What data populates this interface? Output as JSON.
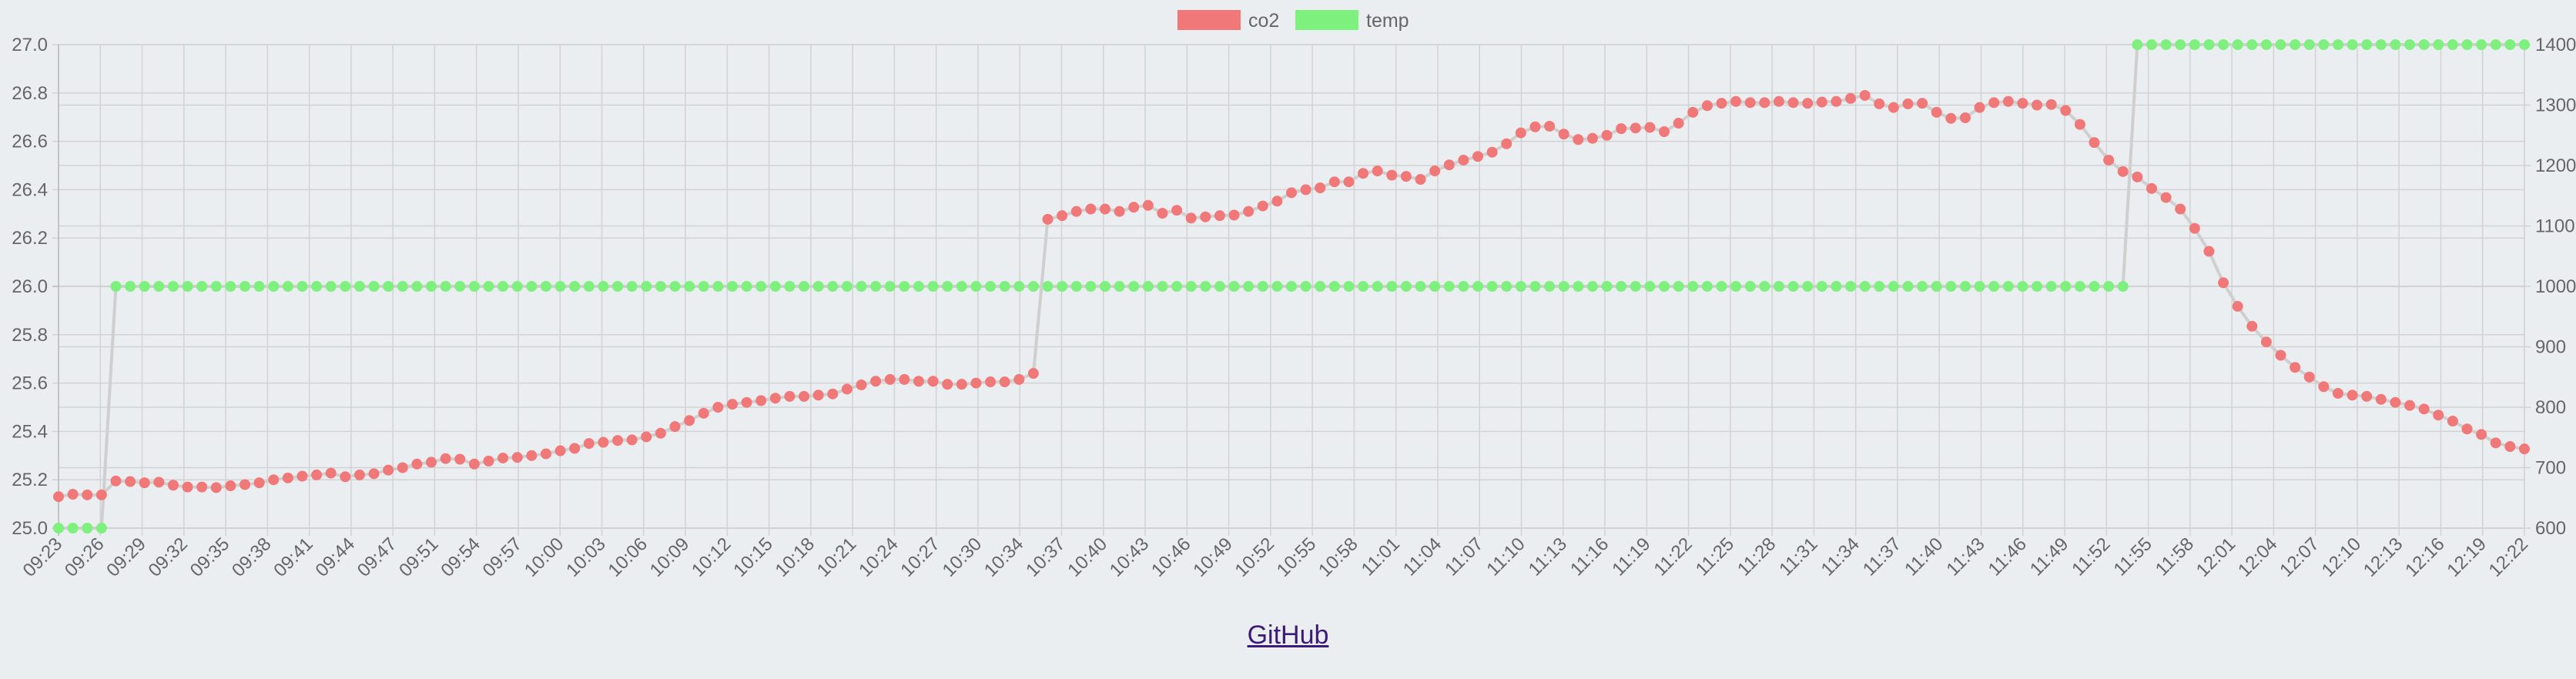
{
  "footer": {
    "link_label": "GitHub"
  },
  "chart_data": {
    "type": "line",
    "legend": {
      "position": "top",
      "entries": [
        "co2",
        "temp"
      ]
    },
    "grid": true,
    "colors": {
      "co2": "#f07878",
      "temp": "#7ef07e",
      "line": "#cfcfcf"
    },
    "y_left": {
      "min": 25.0,
      "max": 27.0,
      "ticks": [
        "25.0",
        "25.2",
        "25.4",
        "25.6",
        "25.8",
        "26.0",
        "26.2",
        "26.4",
        "26.6",
        "26.8",
        "27.0"
      ]
    },
    "y_right": {
      "min": 600,
      "max": 1400,
      "ticks": [
        "600",
        "700",
        "800",
        "900",
        "1000",
        "1100",
        "1200",
        "1300",
        "1400"
      ]
    },
    "x_labels": [
      "09:23",
      "09:26",
      "09:29",
      "09:32",
      "09:35",
      "09:38",
      "09:41",
      "09:44",
      "09:47",
      "09:51",
      "09:54",
      "09:57",
      "10:00",
      "10:03",
      "10:06",
      "10:09",
      "10:12",
      "10:15",
      "10:18",
      "10:21",
      "10:24",
      "10:27",
      "10:30",
      "10:34",
      "10:37",
      "10:40",
      "10:43",
      "10:46",
      "10:49",
      "10:52",
      "10:55",
      "10:58",
      "11:01",
      "11:04",
      "11:07",
      "11:10",
      "11:13",
      "11:16",
      "11:19",
      "11:22",
      "11:25",
      "11:28",
      "11:31",
      "11:34",
      "11:37",
      "11:40",
      "11:43",
      "11:46",
      "11:49",
      "11:52",
      "11:55",
      "11:58",
      "12:01",
      "12:04",
      "12:07",
      "12:10",
      "12:13",
      "12:16",
      "12:19",
      "12:22"
    ],
    "series": [
      {
        "name": "co2",
        "axis": "right",
        "values": [
          652,
          656,
          655,
          655,
          678,
          677,
          675,
          676,
          671,
          668,
          668,
          667,
          670,
          672,
          675,
          680,
          683,
          686,
          688,
          691,
          685,
          688,
          690,
          696,
          700,
          706,
          709,
          715,
          714,
          706,
          711,
          716,
          717,
          720,
          723,
          728,
          732,
          740,
          742,
          745,
          746,
          751,
          757,
          768,
          778,
          790,
          800,
          805,
          808,
          811,
          815,
          818,
          818,
          820,
          822,
          830,
          837,
          843,
          846,
          846,
          843,
          843,
          838,
          838,
          840,
          842,
          842,
          846,
          856,
          1111,
          1117,
          1124,
          1128,
          1128,
          1124,
          1131,
          1134,
          1121,
          1126,
          1113,
          1115,
          1117,
          1118,
          1124,
          1133,
          1141,
          1155,
          1160,
          1163,
          1173,
          1173,
          1187,
          1191,
          1184,
          1182,
          1177,
          1191,
          1201,
          1209,
          1215,
          1222,
          1236,
          1254,
          1264,
          1265,
          1252,
          1243,
          1245,
          1250,
          1261,
          1262,
          1263,
          1256,
          1270,
          1288,
          1299,
          1303,
          1306,
          1304,
          1304,
          1306,
          1304,
          1303,
          1305,
          1306,
          1311,
          1316,
          1302,
          1296,
          1302,
          1303,
          1288,
          1278,
          1279,
          1296,
          1304,
          1306,
          1303,
          1300,
          1301,
          1291,
          1268,
          1238,
          1209,
          1190,
          1181,
          1162,
          1147,
          1128,
          1096,
          1058,
          1006,
          967,
          934,
          908,
          886,
          866,
          850,
          834,
          823,
          820,
          818,
          813,
          808,
          803,
          797,
          787,
          777,
          764,
          755,
          741,
          735,
          731
        ]
      },
      {
        "name": "temp",
        "axis": "left",
        "values": [
          25.0,
          25.0,
          25.0,
          25.0,
          26.0,
          26.0,
          26.0,
          26.0,
          26.0,
          26.0,
          26.0,
          26.0,
          26.0,
          26.0,
          26.0,
          26.0,
          26.0,
          26.0,
          26.0,
          26.0,
          26.0,
          26.0,
          26.0,
          26.0,
          26.0,
          26.0,
          26.0,
          26.0,
          26.0,
          26.0,
          26.0,
          26.0,
          26.0,
          26.0,
          26.0,
          26.0,
          26.0,
          26.0,
          26.0,
          26.0,
          26.0,
          26.0,
          26.0,
          26.0,
          26.0,
          26.0,
          26.0,
          26.0,
          26.0,
          26.0,
          26.0,
          26.0,
          26.0,
          26.0,
          26.0,
          26.0,
          26.0,
          26.0,
          26.0,
          26.0,
          26.0,
          26.0,
          26.0,
          26.0,
          26.0,
          26.0,
          26.0,
          26.0,
          26.0,
          26.0,
          26.0,
          26.0,
          26.0,
          26.0,
          26.0,
          26.0,
          26.0,
          26.0,
          26.0,
          26.0,
          26.0,
          26.0,
          26.0,
          26.0,
          26.0,
          26.0,
          26.0,
          26.0,
          26.0,
          26.0,
          26.0,
          26.0,
          26.0,
          26.0,
          26.0,
          26.0,
          26.0,
          26.0,
          26.0,
          26.0,
          26.0,
          26.0,
          26.0,
          26.0,
          26.0,
          26.0,
          26.0,
          26.0,
          26.0,
          26.0,
          26.0,
          26.0,
          26.0,
          26.0,
          26.0,
          26.0,
          26.0,
          26.0,
          26.0,
          26.0,
          26.0,
          26.0,
          26.0,
          26.0,
          26.0,
          26.0,
          26.0,
          26.0,
          26.0,
          26.0,
          26.0,
          26.0,
          26.0,
          26.0,
          26.0,
          26.0,
          26.0,
          26.0,
          26.0,
          26.0,
          26.0,
          26.0,
          26.0,
          26.0,
          26.0,
          27.0,
          27.0,
          27.0,
          27.0,
          27.0,
          27.0,
          27.0,
          27.0,
          27.0,
          27.0,
          27.0,
          27.0,
          27.0,
          27.0,
          27.0,
          27.0,
          27.0,
          27.0,
          27.0,
          27.0,
          27.0,
          27.0,
          27.0,
          27.0,
          27.0,
          27.0,
          27.0,
          27.0
        ]
      }
    ]
  }
}
